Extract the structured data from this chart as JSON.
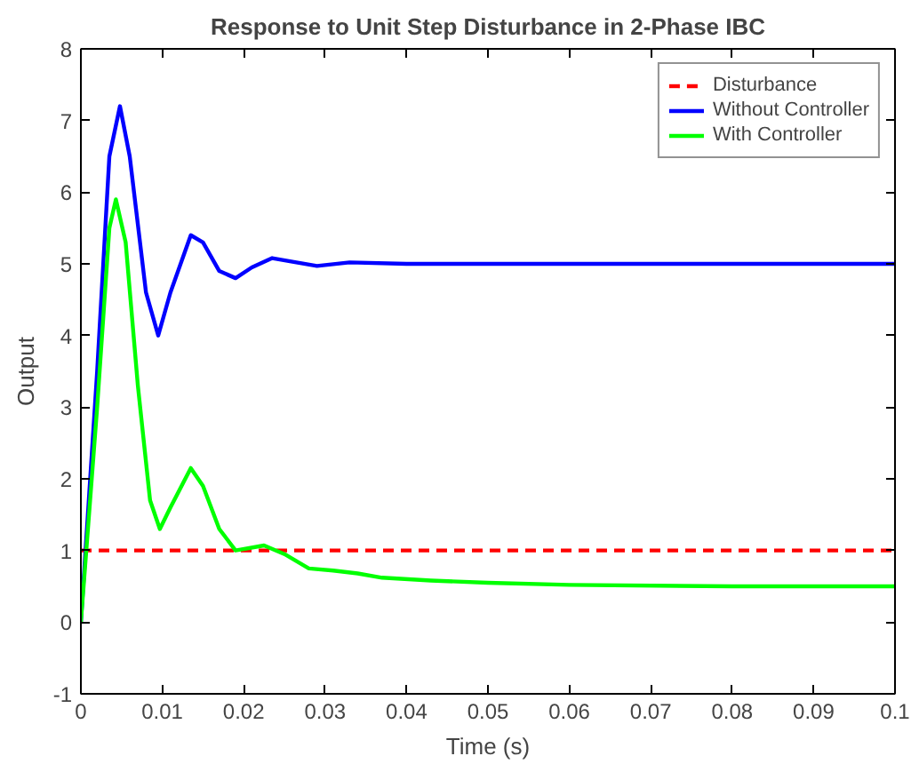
{
  "chart_data": {
    "type": "line",
    "title": "Response to Unit Step Disturbance in 2-Phase IBC",
    "xlabel": "Time (s)",
    "ylabel": "Output",
    "xlim": [
      0,
      0.1
    ],
    "ylim": [
      -1,
      8
    ],
    "xticks": [
      0,
      0.01,
      0.02,
      0.03,
      0.04,
      0.05,
      0.06,
      0.07,
      0.08,
      0.09,
      0.1
    ],
    "yticks": [
      -1,
      0,
      1,
      2,
      3,
      4,
      5,
      6,
      7,
      8
    ],
    "grid": false,
    "legend": "top right",
    "series": [
      {
        "name": "Disturbance",
        "color": "#ff0000",
        "line_style": "dashed",
        "x": [
          0,
          0.1
        ],
        "values": [
          1,
          1
        ]
      },
      {
        "name": "Without Controller",
        "color": "#0000ff",
        "line_style": "solid",
        "x": [
          0,
          0.002,
          0.0035,
          0.0048,
          0.006,
          0.008,
          0.0095,
          0.011,
          0.0135,
          0.015,
          0.017,
          0.019,
          0.021,
          0.0235,
          0.026,
          0.029,
          0.033,
          0.04,
          0.1
        ],
        "values": [
          0,
          3.5,
          6.5,
          7.2,
          6.5,
          4.6,
          4.0,
          4.6,
          5.4,
          5.3,
          4.9,
          4.8,
          4.95,
          5.08,
          5.03,
          4.97,
          5.02,
          5.0,
          5.0
        ]
      },
      {
        "name": "With Controller",
        "color": "#00ff00",
        "line_style": "solid",
        "x": [
          0,
          0.002,
          0.0035,
          0.0043,
          0.0055,
          0.007,
          0.0085,
          0.0097,
          0.011,
          0.0135,
          0.015,
          0.017,
          0.019,
          0.0225,
          0.025,
          0.028,
          0.031,
          0.034,
          0.037,
          0.043,
          0.05,
          0.06,
          0.08,
          0.1
        ],
        "values": [
          0,
          3.0,
          5.5,
          5.9,
          5.3,
          3.3,
          1.7,
          1.3,
          1.6,
          2.15,
          1.9,
          1.3,
          1.0,
          1.07,
          0.95,
          0.75,
          0.72,
          0.68,
          0.62,
          0.58,
          0.55,
          0.52,
          0.5,
          0.5
        ]
      }
    ]
  }
}
